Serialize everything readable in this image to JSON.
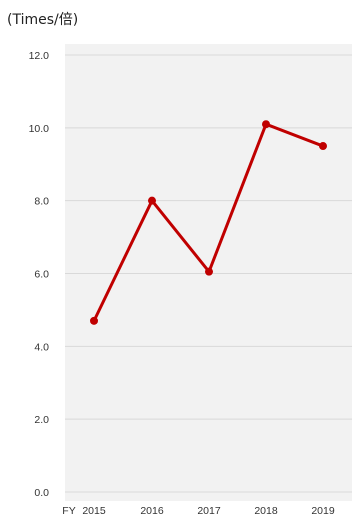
{
  "unit_label": "(Times/倍)",
  "chart_data": {
    "type": "line",
    "x_prefix": "FY",
    "categories": [
      "2015",
      "2016",
      "2017",
      "2018",
      "2019"
    ],
    "series": [
      {
        "values": [
          4.7,
          8.0,
          6.05,
          10.1,
          9.5
        ]
      }
    ],
    "ylim": [
      0,
      12
    ],
    "yticks": [
      "0.0",
      "2.0",
      "4.0",
      "6.0",
      "8.0",
      "10.0",
      "12.0"
    ],
    "grid": true,
    "colors": {
      "line": "#c00000",
      "grid": "#d9d9d9",
      "panel": "#f2f2f2"
    }
  }
}
